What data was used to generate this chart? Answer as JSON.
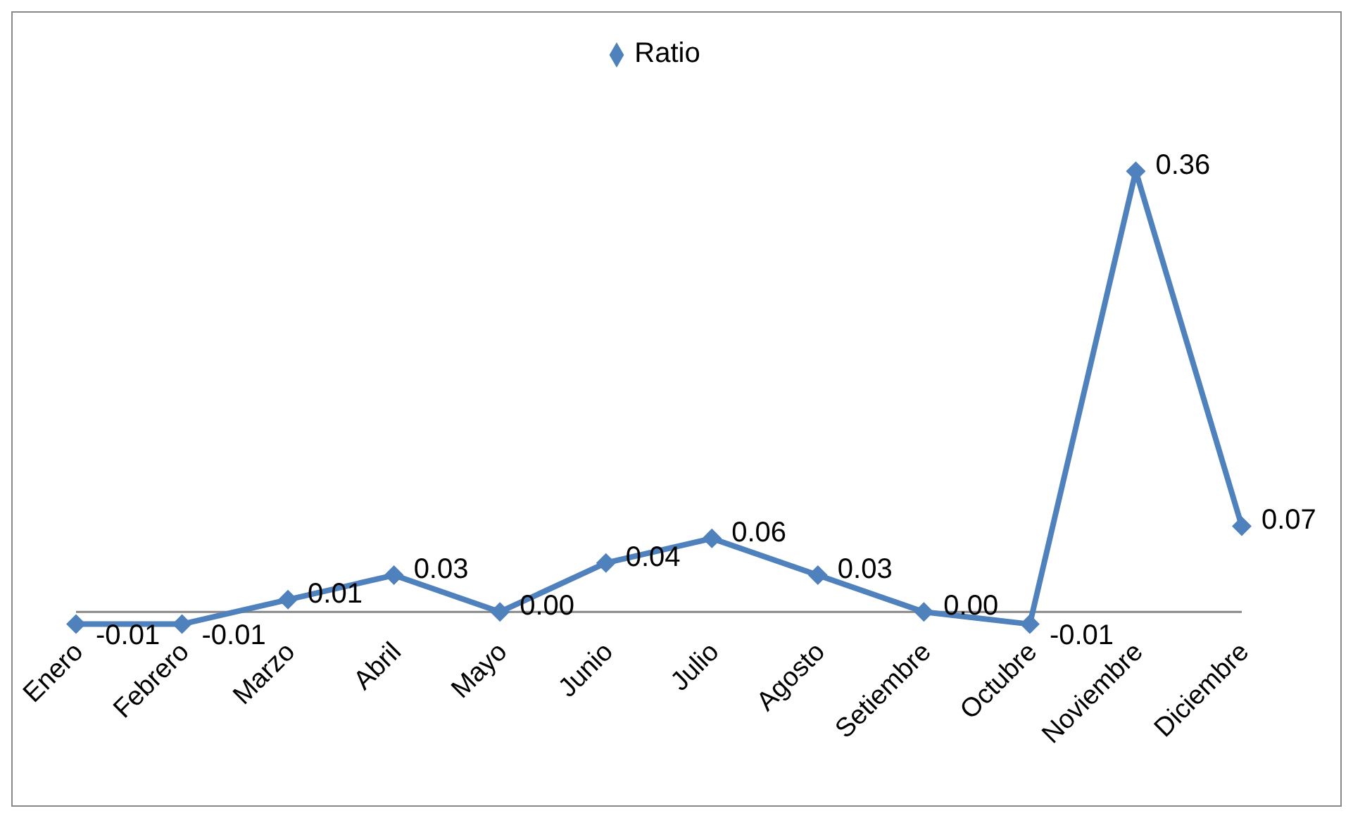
{
  "chart_data": {
    "type": "line",
    "categories": [
      "Enero",
      "Febrero",
      "Marzo",
      "Abril",
      "Mayo",
      "Junio",
      "Julio",
      "Agosto",
      "Setiembre",
      "Octubre",
      "Noviembre",
      "Diciembre"
    ],
    "series": [
      {
        "name": "Ratio",
        "color": "#4f81bd",
        "values": [
          -0.01,
          -0.01,
          0.01,
          0.03,
          0.0,
          0.04,
          0.06,
          0.03,
          0.0,
          -0.01,
          0.36,
          0.07
        ],
        "value_labels": [
          "-0.01",
          "-0.01",
          "0.01",
          "0.03",
          "0.00",
          "0.04",
          "0.06",
          "0.03",
          "0.00",
          "-0.01",
          "0.36",
          "0.07"
        ]
      }
    ],
    "legend": "top",
    "marker": "diamond"
  }
}
